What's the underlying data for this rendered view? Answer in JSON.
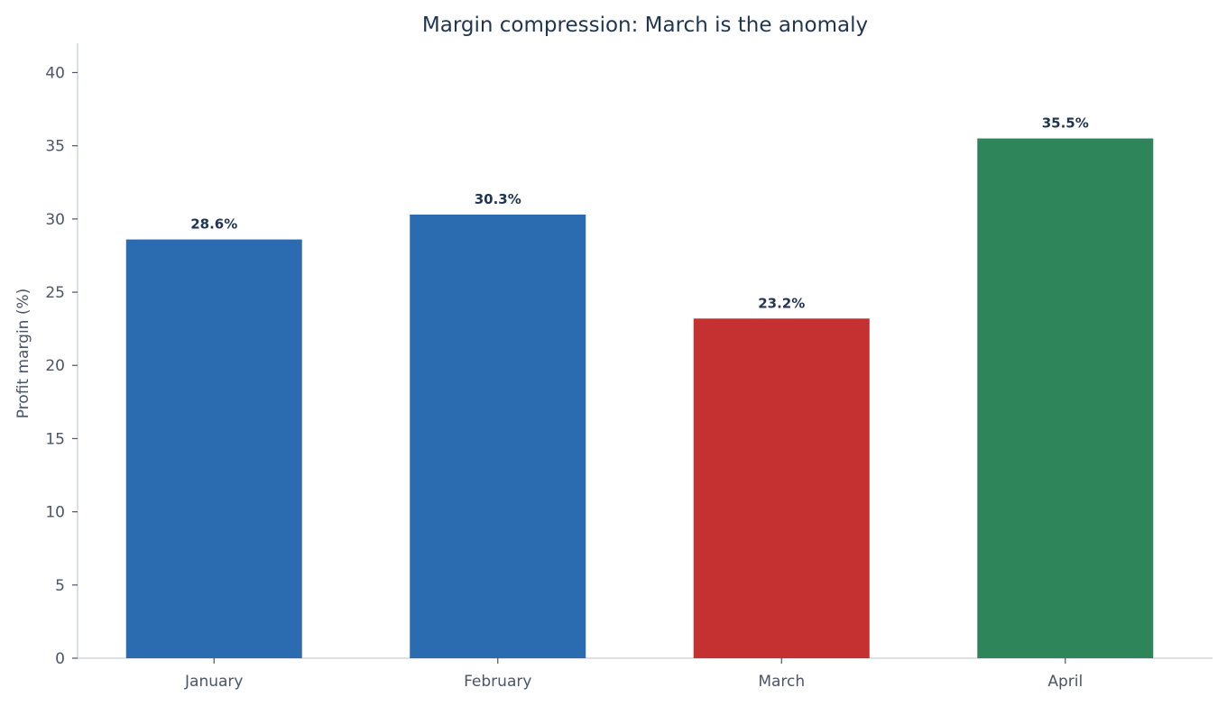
{
  "chart_data": {
    "type": "bar",
    "title": "Margin compression: March is the anomaly",
    "xlabel": "",
    "ylabel": "Profit margin (%)",
    "categories": [
      "January",
      "February",
      "March",
      "April"
    ],
    "values": [
      28.6,
      30.3,
      23.2,
      35.5
    ],
    "data_labels": [
      "28.6%",
      "30.3%",
      "23.2%",
      "35.5%"
    ],
    "bar_colors": [
      "#2b6cb0",
      "#2b6cb0",
      "#c53030",
      "#2f855a"
    ],
    "ylim": [
      0,
      42
    ],
    "yticks": [
      0,
      5,
      10,
      15,
      20,
      25,
      30,
      35,
      40
    ],
    "grid": false,
    "legend": "none"
  }
}
